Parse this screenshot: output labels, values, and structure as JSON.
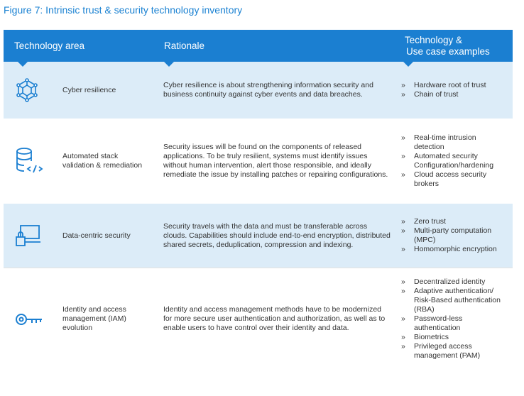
{
  "title": "Figure 7: Intrinsic trust & security technology inventory",
  "header": {
    "area": "Technology area",
    "rationale": "Rationale",
    "examples": [
      "Technology &",
      "Use case examples"
    ]
  },
  "bullet": "»",
  "rows": [
    {
      "area": "Cyber resilience",
      "rationale": "Cyber resilience is about strengthening information security and business continuity against cyber events and data breaches.",
      "examples": [
        "Hardware root of trust",
        "Chain of trust"
      ]
    },
    {
      "area": "Automated stack validation & remediation",
      "rationale": "Security issues will be found on the components of released applications. To be truly resilient, systems must identify issues without human intervention, alert those responsible, and ideally remediate the issue by installing patches or repairing configurations.",
      "examples": [
        "Real-time intrusion detection",
        "Automated security Configuration/hardening",
        "Cloud access security brokers"
      ]
    },
    {
      "area": "Data-centric security",
      "rationale": "Security travels with the data and must be transferable across clouds. Capabilities should include end-to-end encryption, distributed shared secrets, deduplication, compression and indexing.",
      "examples": [
        "Zero trust",
        "Multi-party computation (MPC)",
        "Homomorphic encryption"
      ]
    },
    {
      "area": "Identity and access management (IAM) evolution",
      "rationale": "Identity and access management methods have to be modernized for more secure user authentication and authorization, as well as to enable users to have control over their identity and data.",
      "examples": [
        "Decentralized identity",
        "Adaptive authentication/ Risk-Based authentication (RBA)",
        "Password-less authentication",
        "Biometrics",
        "Privileged access management (PAM)"
      ]
    }
  ]
}
